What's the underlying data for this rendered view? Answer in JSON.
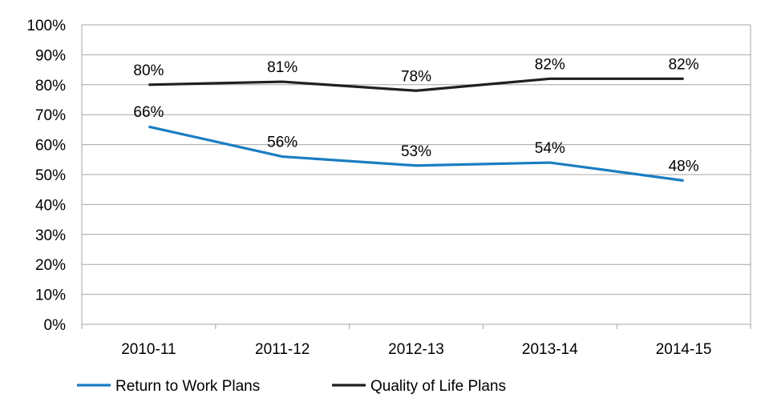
{
  "chart_data": {
    "type": "line",
    "categories": [
      "2010-11",
      "2011-12",
      "2012-13",
      "2013-14",
      "2014-15"
    ],
    "series": [
      {
        "name": "Return to Work Plans",
        "color": "#1a7dc2",
        "values": [
          66,
          56,
          53,
          54,
          48
        ],
        "labels": [
          "66%",
          "56%",
          "53%",
          "54%",
          "48%"
        ]
      },
      {
        "name": "Quality of Life Plans",
        "color": "#231f20",
        "values": [
          80,
          81,
          78,
          82,
          82
        ],
        "labels": [
          "80%",
          "81%",
          "78%",
          "82%",
          "82%"
        ]
      }
    ],
    "ylim": [
      0,
      100
    ],
    "yticks": [
      0,
      10,
      20,
      30,
      40,
      50,
      60,
      70,
      80,
      90,
      100
    ],
    "ytick_labels": [
      "0%",
      "10%",
      "20%",
      "30%",
      "40%",
      "50%",
      "60%",
      "70%",
      "80%",
      "90%",
      "100%"
    ],
    "grid": true,
    "legend_position": "bottom-left",
    "gridline_color": "#a6a6a6"
  }
}
